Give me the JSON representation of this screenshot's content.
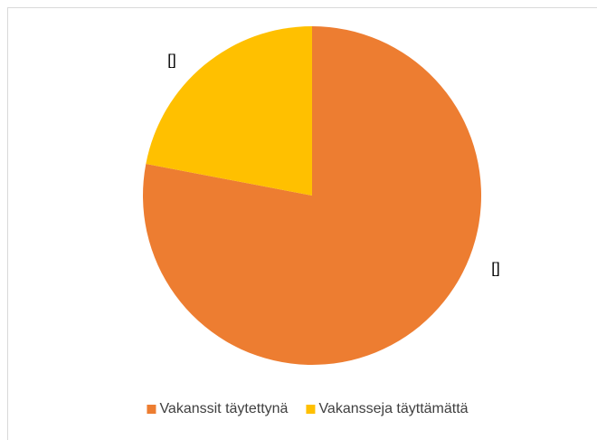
{
  "chart_data": {
    "type": "pie",
    "categories": [
      "Vakanssit täytettynä",
      "Vakansseja täyttämättä"
    ],
    "values": [
      78,
      22
    ],
    "value_labels": [
      "[]",
      "[]"
    ],
    "colors": [
      "#ED7D31",
      "#FFC000"
    ],
    "legend": "bottom"
  }
}
